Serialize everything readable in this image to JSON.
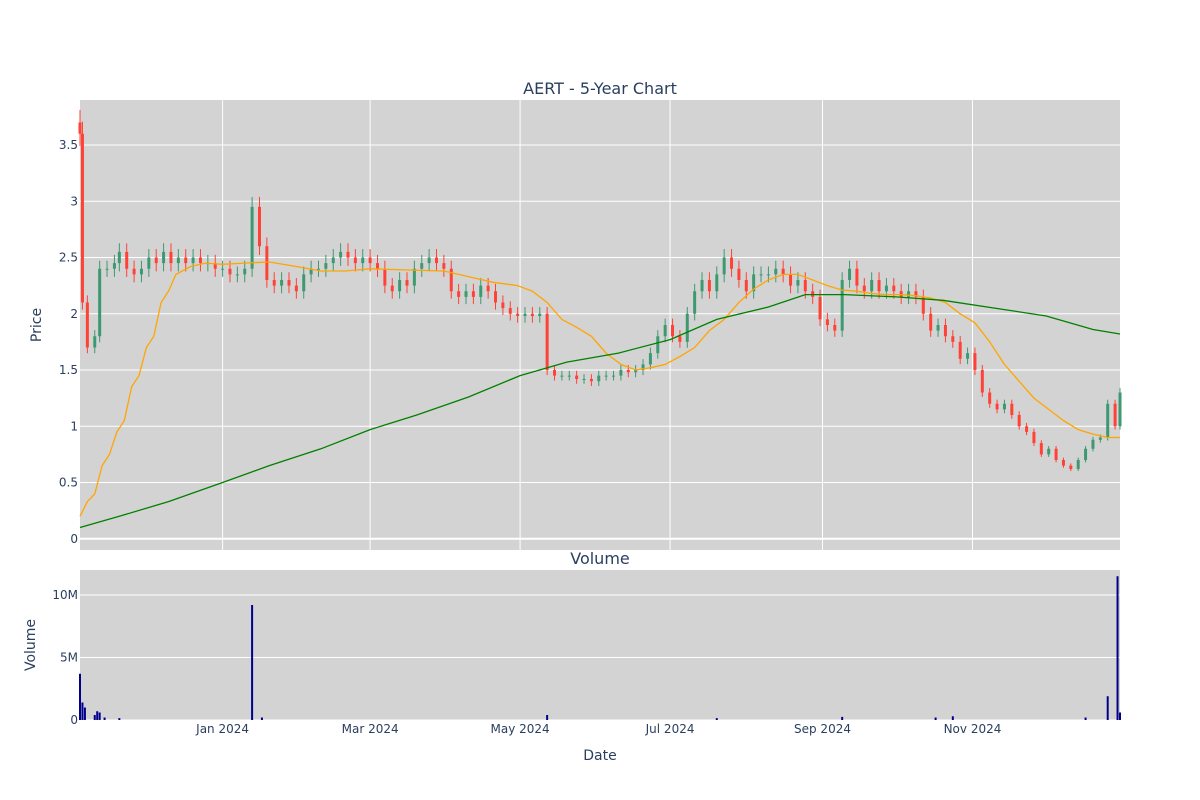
{
  "chart_data": [
    {
      "type": "candlestick",
      "title": "AERT - 5-Year Chart",
      "ylabel": "Price",
      "xlabel": "",
      "ylim": [
        -0.1,
        3.9
      ],
      "y_ticks": [
        0,
        0.5,
        1,
        1.5,
        2,
        2.5,
        3,
        3.5
      ],
      "y_tick_labels": [
        "0",
        "0.5",
        "1",
        "1.5",
        "2",
        "2.5",
        "3",
        "3.5"
      ],
      "x_range": [
        "2023-11-04",
        "2024-12-31"
      ],
      "x_grid_dates": [
        "2024-01-01",
        "2024-03-01",
        "2024-05-01",
        "2024-07-01",
        "2024-09-01",
        "2024-11-01"
      ],
      "grid": true,
      "colors": {
        "up": "#3d9970",
        "down": "#ff4136",
        "ma_short": "#ffa500",
        "ma_long": "#008000",
        "background": "#d3d3d3",
        "grid": "#ffffff"
      },
      "close_points": [
        [
          "2023-11-04",
          3.6
        ],
        [
          "2023-11-05",
          2.1
        ],
        [
          "2023-11-07",
          1.7
        ],
        [
          "2023-11-10",
          1.8
        ],
        [
          "2023-11-12",
          2.4
        ],
        [
          "2023-11-15",
          2.4
        ],
        [
          "2023-11-18",
          2.45
        ],
        [
          "2023-11-20",
          2.55
        ],
        [
          "2023-11-23",
          2.4
        ],
        [
          "2023-11-26",
          2.35
        ],
        [
          "2023-11-29",
          2.4
        ],
        [
          "2023-12-02",
          2.5
        ],
        [
          "2023-12-05",
          2.45
        ],
        [
          "2023-12-08",
          2.55
        ],
        [
          "2023-12-11",
          2.45
        ],
        [
          "2023-12-14",
          2.5
        ],
        [
          "2023-12-17",
          2.45
        ],
        [
          "2023-12-20",
          2.5
        ],
        [
          "2023-12-23",
          2.45
        ],
        [
          "2023-12-26",
          2.45
        ],
        [
          "2023-12-29",
          2.4
        ],
        [
          "2024-01-01",
          2.4
        ],
        [
          "2024-01-04",
          2.35
        ],
        [
          "2024-01-07",
          2.35
        ],
        [
          "2024-01-10",
          2.4
        ],
        [
          "2024-01-13",
          2.95
        ],
        [
          "2024-01-16",
          2.6
        ],
        [
          "2024-01-19",
          2.3
        ],
        [
          "2024-01-22",
          2.25
        ],
        [
          "2024-01-25",
          2.3
        ],
        [
          "2024-01-28",
          2.25
        ],
        [
          "2024-01-31",
          2.2
        ],
        [
          "2024-02-03",
          2.35
        ],
        [
          "2024-02-06",
          2.4
        ],
        [
          "2024-02-09",
          2.4
        ],
        [
          "2024-02-12",
          2.45
        ],
        [
          "2024-02-15",
          2.5
        ],
        [
          "2024-02-18",
          2.55
        ],
        [
          "2024-02-21",
          2.5
        ],
        [
          "2024-02-24",
          2.45
        ],
        [
          "2024-02-27",
          2.5
        ],
        [
          "2024-03-01",
          2.45
        ],
        [
          "2024-03-04",
          2.4
        ],
        [
          "2024-03-07",
          2.25
        ],
        [
          "2024-03-10",
          2.2
        ],
        [
          "2024-03-13",
          2.3
        ],
        [
          "2024-03-16",
          2.25
        ],
        [
          "2024-03-19",
          2.4
        ],
        [
          "2024-03-22",
          2.45
        ],
        [
          "2024-03-25",
          2.5
        ],
        [
          "2024-03-28",
          2.45
        ],
        [
          "2024-03-31",
          2.4
        ],
        [
          "2024-04-03",
          2.2
        ],
        [
          "2024-04-06",
          2.15
        ],
        [
          "2024-04-09",
          2.2
        ],
        [
          "2024-04-12",
          2.15
        ],
        [
          "2024-04-15",
          2.25
        ],
        [
          "2024-04-18",
          2.2
        ],
        [
          "2024-04-21",
          2.1
        ],
        [
          "2024-04-24",
          2.05
        ],
        [
          "2024-04-27",
          2.0
        ],
        [
          "2024-04-30",
          1.98
        ],
        [
          "2024-05-03",
          2.0
        ],
        [
          "2024-05-06",
          1.98
        ],
        [
          "2024-05-09",
          2.0
        ],
        [
          "2024-05-12",
          1.5
        ],
        [
          "2024-05-15",
          1.45
        ],
        [
          "2024-05-18",
          1.45
        ],
        [
          "2024-05-21",
          1.45
        ],
        [
          "2024-05-24",
          1.42
        ],
        [
          "2024-05-27",
          1.42
        ],
        [
          "2024-05-30",
          1.4
        ],
        [
          "2024-06-02",
          1.45
        ],
        [
          "2024-06-05",
          1.45
        ],
        [
          "2024-06-08",
          1.45
        ],
        [
          "2024-06-11",
          1.5
        ],
        [
          "2024-06-14",
          1.48
        ],
        [
          "2024-06-17",
          1.5
        ],
        [
          "2024-06-20",
          1.55
        ],
        [
          "2024-06-23",
          1.65
        ],
        [
          "2024-06-26",
          1.8
        ],
        [
          "2024-06-29",
          1.9
        ],
        [
          "2024-07-02",
          1.8
        ],
        [
          "2024-07-05",
          1.75
        ],
        [
          "2024-07-08",
          2.0
        ],
        [
          "2024-07-11",
          2.2
        ],
        [
          "2024-07-14",
          2.3
        ],
        [
          "2024-07-17",
          2.2
        ],
        [
          "2024-07-20",
          2.35
        ],
        [
          "2024-07-23",
          2.5
        ],
        [
          "2024-07-26",
          2.4
        ],
        [
          "2024-07-29",
          2.3
        ],
        [
          "2024-08-01",
          2.2
        ],
        [
          "2024-08-04",
          2.35
        ],
        [
          "2024-08-07",
          2.35
        ],
        [
          "2024-08-10",
          2.35
        ],
        [
          "2024-08-13",
          2.4
        ],
        [
          "2024-08-16",
          2.35
        ],
        [
          "2024-08-19",
          2.25
        ],
        [
          "2024-08-22",
          2.3
        ],
        [
          "2024-08-25",
          2.2
        ],
        [
          "2024-08-28",
          2.15
        ],
        [
          "2024-08-31",
          1.95
        ],
        [
          "2024-09-03",
          1.9
        ],
        [
          "2024-09-06",
          1.85
        ],
        [
          "2024-09-09",
          2.3
        ],
        [
          "2024-09-12",
          2.4
        ],
        [
          "2024-09-15",
          2.25
        ],
        [
          "2024-09-18",
          2.2
        ],
        [
          "2024-09-21",
          2.3
        ],
        [
          "2024-09-24",
          2.2
        ],
        [
          "2024-09-27",
          2.25
        ],
        [
          "2024-09-30",
          2.2
        ],
        [
          "2024-10-03",
          2.15
        ],
        [
          "2024-10-06",
          2.2
        ],
        [
          "2024-10-09",
          2.15
        ],
        [
          "2024-10-12",
          2.0
        ],
        [
          "2024-10-15",
          1.85
        ],
        [
          "2024-10-18",
          1.9
        ],
        [
          "2024-10-21",
          1.8
        ],
        [
          "2024-10-24",
          1.75
        ],
        [
          "2024-10-27",
          1.6
        ],
        [
          "2024-10-30",
          1.65
        ],
        [
          "2024-11-02",
          1.5
        ],
        [
          "2024-11-05",
          1.3
        ],
        [
          "2024-11-08",
          1.2
        ],
        [
          "2024-11-11",
          1.15
        ],
        [
          "2024-11-14",
          1.2
        ],
        [
          "2024-11-17",
          1.1
        ],
        [
          "2024-11-20",
          1.0
        ],
        [
          "2024-11-23",
          0.95
        ],
        [
          "2024-11-26",
          0.85
        ],
        [
          "2024-11-29",
          0.75
        ],
        [
          "2024-12-02",
          0.8
        ],
        [
          "2024-12-05",
          0.7
        ],
        [
          "2024-12-08",
          0.65
        ],
        [
          "2024-12-11",
          0.62
        ],
        [
          "2024-12-14",
          0.7
        ],
        [
          "2024-12-17",
          0.8
        ],
        [
          "2024-12-20",
          0.88
        ],
        [
          "2024-12-23",
          0.9
        ],
        [
          "2024-12-26",
          1.2
        ],
        [
          "2024-12-29",
          1.0
        ],
        [
          "2024-12-31",
          1.3
        ]
      ],
      "ma_short": [
        [
          "2023-11-04",
          0.2
        ],
        [
          "2023-11-07",
          0.33
        ],
        [
          "2023-11-10",
          0.4
        ],
        [
          "2023-11-13",
          0.65
        ],
        [
          "2023-11-16",
          0.75
        ],
        [
          "2023-11-19",
          0.95
        ],
        [
          "2023-11-22",
          1.05
        ],
        [
          "2023-11-25",
          1.35
        ],
        [
          "2023-11-28",
          1.45
        ],
        [
          "2023-12-01",
          1.7
        ],
        [
          "2023-12-04",
          1.8
        ],
        [
          "2023-12-07",
          2.1
        ],
        [
          "2023-12-10",
          2.2
        ],
        [
          "2023-12-13",
          2.35
        ],
        [
          "2023-12-19",
          2.42
        ],
        [
          "2023-12-25",
          2.45
        ],
        [
          "2024-01-01",
          2.44
        ],
        [
          "2024-01-10",
          2.45
        ],
        [
          "2024-01-20",
          2.46
        ],
        [
          "2024-01-31",
          2.42
        ],
        [
          "2024-02-10",
          2.38
        ],
        [
          "2024-02-20",
          2.38
        ],
        [
          "2024-03-01",
          2.4
        ],
        [
          "2024-03-15",
          2.39
        ],
        [
          "2024-03-31",
          2.38
        ],
        [
          "2024-04-10",
          2.33
        ],
        [
          "2024-04-20",
          2.28
        ],
        [
          "2024-04-30",
          2.25
        ],
        [
          "2024-05-06",
          2.2
        ],
        [
          "2024-05-12",
          2.1
        ],
        [
          "2024-05-18",
          1.95
        ],
        [
          "2024-05-24",
          1.88
        ],
        [
          "2024-05-30",
          1.8
        ],
        [
          "2024-06-05",
          1.65
        ],
        [
          "2024-06-11",
          1.55
        ],
        [
          "2024-06-17",
          1.5
        ],
        [
          "2024-06-23",
          1.52
        ],
        [
          "2024-06-29",
          1.55
        ],
        [
          "2024-07-05",
          1.62
        ],
        [
          "2024-07-11",
          1.7
        ],
        [
          "2024-07-17",
          1.85
        ],
        [
          "2024-07-23",
          1.95
        ],
        [
          "2024-07-29",
          2.1
        ],
        [
          "2024-08-04",
          2.22
        ],
        [
          "2024-08-10",
          2.3
        ],
        [
          "2024-08-16",
          2.35
        ],
        [
          "2024-08-22",
          2.35
        ],
        [
          "2024-08-28",
          2.3
        ],
        [
          "2024-09-03",
          2.25
        ],
        [
          "2024-09-09",
          2.21
        ],
        [
          "2024-09-15",
          2.2
        ],
        [
          "2024-09-21",
          2.18
        ],
        [
          "2024-09-27",
          2.17
        ],
        [
          "2024-10-03",
          2.17
        ],
        [
          "2024-10-09",
          2.16
        ],
        [
          "2024-10-15",
          2.14
        ],
        [
          "2024-10-21",
          2.1
        ],
        [
          "2024-10-27",
          2.0
        ],
        [
          "2024-11-02",
          1.92
        ],
        [
          "2024-11-08",
          1.75
        ],
        [
          "2024-11-14",
          1.55
        ],
        [
          "2024-11-20",
          1.4
        ],
        [
          "2024-11-26",
          1.25
        ],
        [
          "2024-12-02",
          1.15
        ],
        [
          "2024-12-08",
          1.05
        ],
        [
          "2024-12-14",
          0.97
        ],
        [
          "2024-12-20",
          0.93
        ],
        [
          "2024-12-26",
          0.9
        ],
        [
          "2024-12-31",
          0.9
        ]
      ],
      "ma_long": [
        [
          "2023-11-04",
          0.1
        ],
        [
          "2023-11-20",
          0.2
        ],
        [
          "2023-12-10",
          0.33
        ],
        [
          "2024-01-01",
          0.5
        ],
        [
          "2024-01-20",
          0.65
        ],
        [
          "2024-02-10",
          0.8
        ],
        [
          "2024-03-01",
          0.97
        ],
        [
          "2024-03-20",
          1.1
        ],
        [
          "2024-04-10",
          1.26
        ],
        [
          "2024-05-01",
          1.45
        ],
        [
          "2024-05-20",
          1.57
        ],
        [
          "2024-06-10",
          1.65
        ],
        [
          "2024-07-01",
          1.77
        ],
        [
          "2024-07-20",
          1.95
        ],
        [
          "2024-08-10",
          2.06
        ],
        [
          "2024-08-25",
          2.17
        ],
        [
          "2024-09-10",
          2.17
        ],
        [
          "2024-10-01",
          2.15
        ],
        [
          "2024-10-20",
          2.12
        ],
        [
          "2024-11-10",
          2.05
        ],
        [
          "2024-12-01",
          1.98
        ],
        [
          "2024-12-20",
          1.86
        ],
        [
          "2024-12-31",
          1.82
        ]
      ]
    },
    {
      "type": "bar",
      "title": "Volume",
      "xlabel": "Date",
      "ylabel": "Volume",
      "ylim": [
        0,
        12000000
      ],
      "y_ticks": [
        0,
        5000000,
        10000000
      ],
      "y_tick_labels": [
        "0",
        "5M",
        "10M"
      ],
      "x_tick_dates": [
        "2024-01-01",
        "2024-03-01",
        "2024-05-01",
        "2024-07-01",
        "2024-09-01",
        "2024-11-01"
      ],
      "x_tick_labels": [
        "Jan 2024",
        "Mar 2024",
        "May 2024",
        "Jul 2024",
        "Sep 2024",
        "Nov 2024"
      ],
      "bar_color": "#00008b",
      "points": [
        [
          "2023-11-04",
          3700000
        ],
        [
          "2023-11-05",
          1400000
        ],
        [
          "2023-11-06",
          1000000
        ],
        [
          "2023-11-10",
          400000
        ],
        [
          "2023-11-11",
          700000
        ],
        [
          "2023-11-12",
          600000
        ],
        [
          "2023-11-14",
          200000
        ],
        [
          "2023-11-20",
          150000
        ],
        [
          "2024-01-13",
          9200000
        ],
        [
          "2024-01-17",
          200000
        ],
        [
          "2024-05-12",
          400000
        ],
        [
          "2024-07-20",
          150000
        ],
        [
          "2024-09-09",
          250000
        ],
        [
          "2024-10-17",
          200000
        ],
        [
          "2024-10-24",
          300000
        ],
        [
          "2024-12-17",
          200000
        ],
        [
          "2024-12-26",
          1900000
        ],
        [
          "2024-12-30",
          11500000
        ],
        [
          "2024-12-31",
          600000
        ]
      ]
    }
  ]
}
